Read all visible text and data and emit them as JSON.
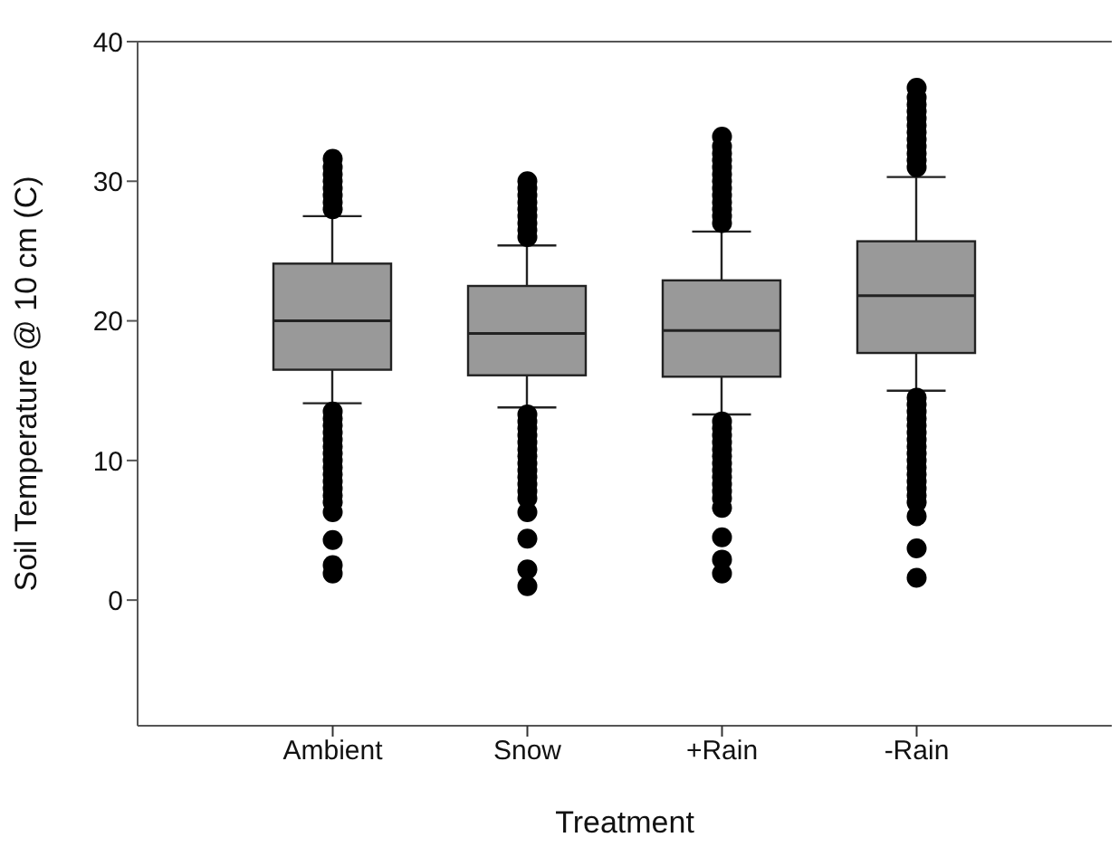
{
  "chart_data": {
    "type": "box",
    "xlabel": "Treatment",
    "ylabel": "Soil Temperature @ 10 cm (C)",
    "categories": [
      "Ambient",
      "Snow",
      "+Rain",
      "-Rain"
    ],
    "color": "#999999",
    "boxes": [
      {
        "low": 14.1,
        "q1": 16.5,
        "median": 20.0,
        "q3": 24.1,
        "high": 27.5,
        "outliers": [
          28,
          28.5,
          29,
          29.5,
          30,
          30.5,
          31,
          31.6,
          13.5,
          13,
          12.5,
          12,
          11.5,
          11,
          10.5,
          10,
          9.5,
          9,
          8.5,
          8,
          7.5,
          7,
          6.3,
          4.3,
          2.5,
          1.9
        ]
      },
      {
        "low": 13.8,
        "q1": 16.1,
        "median": 19.1,
        "q3": 22.5,
        "high": 25.4,
        "outliers": [
          26,
          26.5,
          27,
          27.5,
          28,
          28.5,
          29,
          29.5,
          30,
          13.3,
          12.8,
          12.3,
          11.8,
          11.3,
          10.8,
          10.3,
          9.8,
          9.3,
          8.8,
          8.3,
          7.8,
          7.3,
          6.3,
          4.4,
          2.2,
          1.0
        ]
      },
      {
        "low": 13.3,
        "q1": 16.0,
        "median": 19.3,
        "q3": 22.9,
        "high": 26.4,
        "outliers": [
          27,
          27.5,
          28,
          28.5,
          29,
          29.5,
          30,
          30.5,
          31,
          31.5,
          32,
          32.5,
          33.2,
          12.8,
          12.3,
          11.8,
          11.3,
          10.8,
          10.3,
          9.8,
          9.3,
          8.8,
          8.3,
          7.8,
          7.3,
          6.6,
          4.5,
          2.9,
          1.9
        ]
      },
      {
        "low": 15.0,
        "q1": 17.7,
        "median": 21.8,
        "q3": 25.7,
        "high": 30.3,
        "outliers": [
          31,
          31.5,
          32,
          32.5,
          33,
          33.5,
          34,
          34.5,
          35,
          35.5,
          36,
          36.7,
          14.5,
          14,
          13.5,
          13,
          12.5,
          12,
          11.5,
          11,
          10.5,
          10,
          9.5,
          9,
          8.5,
          8,
          7.5,
          7,
          6,
          3.7,
          1.6
        ]
      }
    ],
    "ylim": [
      -9,
      40
    ],
    "yticks": [
      0,
      10,
      20,
      30,
      40
    ]
  }
}
